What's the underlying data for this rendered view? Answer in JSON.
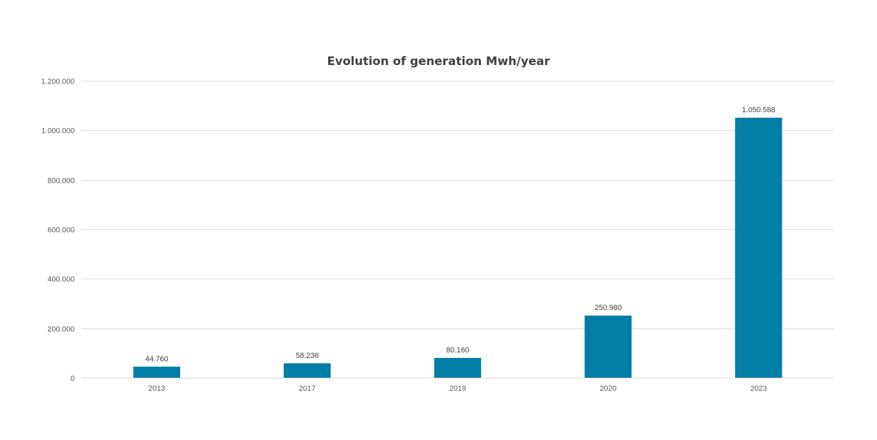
{
  "chart_data": {
    "type": "bar",
    "title": "Evolution of generation Mwh/year",
    "xlabel": "",
    "ylabel": "",
    "categories": [
      "2013",
      "2017",
      "2019",
      "2020",
      "2023"
    ],
    "values": [
      44760,
      58236,
      80160,
      250980,
      1050588
    ],
    "data_labels": [
      "44.760",
      "58.236",
      "80.160",
      "250.980",
      "1.050.588"
    ],
    "ylim": [
      0,
      1200000
    ],
    "yticks": [
      0,
      200000,
      400000,
      600000,
      800000,
      1000000,
      1200000
    ],
    "ytick_labels": [
      "0",
      "200.000",
      "400.000",
      "600.000",
      "800.000",
      "1.000.000",
      "1.200.000"
    ],
    "grid": true,
    "legend": "none",
    "bar_color": "#007ea6"
  }
}
